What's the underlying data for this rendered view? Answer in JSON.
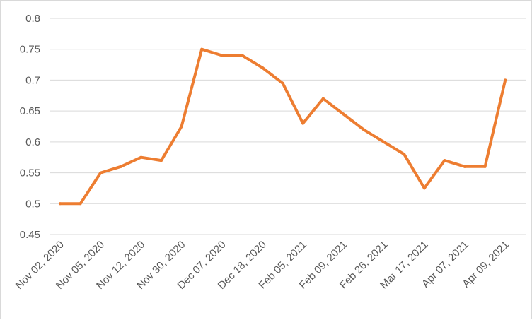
{
  "colors": {
    "series": "#ED7D31",
    "grid": "#D9D9D9",
    "tick_text": "#595959"
  },
  "chart_data": {
    "type": "line",
    "x": [
      "Nov 02, 2020",
      "",
      "Nov 05, 2020",
      "",
      "Nov 12, 2020",
      "",
      "Nov 30, 2020",
      "",
      "Dec 07, 2020",
      "",
      "Dec 18, 2020",
      "",
      "Feb 05, 2021",
      "",
      "Feb 09, 2021",
      "",
      "Feb 26, 2021",
      "",
      "Mar 17, 2021",
      "",
      "Apr 07, 2021",
      "",
      "Apr 09, 2021"
    ],
    "x_tick_labels": [
      "Nov 02, 2020",
      "Nov 05, 2020",
      "Nov 12, 2020",
      "Nov 30, 2020",
      "Dec 07, 2020",
      "Dec 18, 2020",
      "Feb 05, 2021",
      "Feb 09, 2021",
      "Feb 26, 2021",
      "Mar 17, 2021",
      "Apr 07, 2021",
      "Apr 09, 2021"
    ],
    "series": [
      {
        "values": [
          0.5,
          0.5,
          0.55,
          0.56,
          0.575,
          0.57,
          0.625,
          0.75,
          0.74,
          0.74,
          0.72,
          0.695,
          0.63,
          0.67,
          0.645,
          0.62,
          0.6,
          0.58,
          0.525,
          0.57,
          0.56,
          0.56,
          0.7
        ]
      }
    ],
    "y_ticks": [
      "0.45",
      "0.5",
      "0.55",
      "0.6",
      "0.65",
      "0.7",
      "0.75",
      "0.8"
    ],
    "ylim": [
      0.45,
      0.8
    ],
    "grid": true,
    "legend": "none",
    "title": "",
    "xlabel": "",
    "ylabel": ""
  }
}
